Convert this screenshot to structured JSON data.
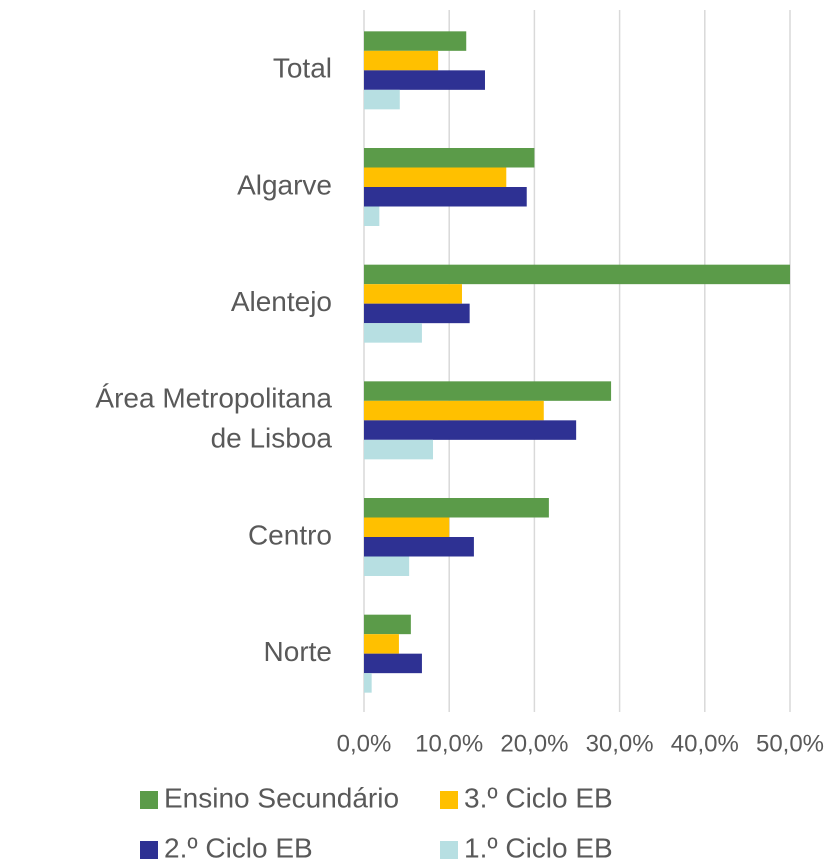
{
  "chart_data": {
    "type": "hbar",
    "categories": [
      "Total",
      "Algarve",
      "Alentejo",
      "Área Metropolitana de Lisboa",
      "Centro",
      "Norte"
    ],
    "series": [
      {
        "name": "Ensino Secundário",
        "color": "#5b9b49",
        "values": [
          12.0,
          20.0,
          50.0,
          29.0,
          21.7,
          5.5
        ]
      },
      {
        "name": "3.º Ciclo EB",
        "color": "#ffc000",
        "values": [
          8.7,
          16.7,
          11.5,
          21.1,
          10.0,
          4.1
        ]
      },
      {
        "name": "2.º Ciclo EB",
        "color": "#2e3193",
        "values": [
          14.2,
          19.1,
          12.4,
          24.9,
          12.9,
          6.8
        ]
      },
      {
        "name": "1.º Ciclo EB",
        "color": "#b7dfe2",
        "values": [
          4.2,
          1.8,
          6.8,
          8.1,
          5.3,
          0.9
        ]
      }
    ],
    "xlim": [
      0,
      50
    ],
    "xticks": [
      {
        "value": 0,
        "label": "0,0%"
      },
      {
        "value": 10,
        "label": "10,0%"
      },
      {
        "value": 20,
        "label": "20,0%"
      },
      {
        "value": 30,
        "label": "30,0%"
      },
      {
        "value": 40,
        "label": "40,0%"
      },
      {
        "value": 50,
        "label": "50,0%"
      }
    ],
    "grid": true
  }
}
